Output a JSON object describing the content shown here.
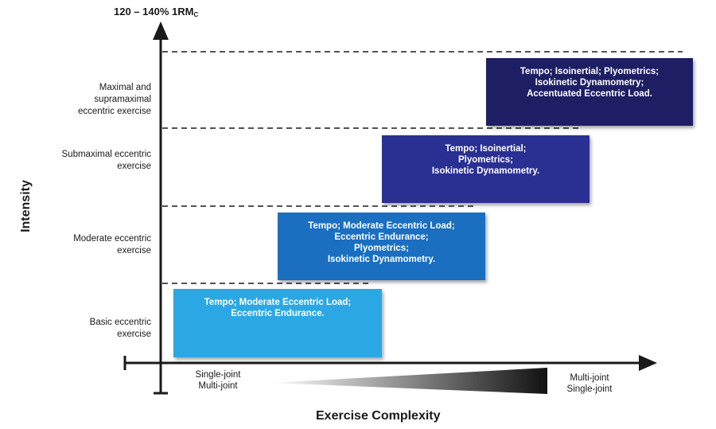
{
  "y_axis": {
    "top_label_main": "120 – 140% 1RM",
    "top_label_sub": "C",
    "title": "Intensity"
  },
  "x_axis": {
    "title": "Exercise Complexity",
    "left_note": [
      "Single-joint",
      "Multi-joint"
    ],
    "right_note": [
      "Multi-joint",
      "Single-joint"
    ]
  },
  "levels": [
    {
      "label": [
        "Maximal and",
        "supramaximal",
        "eccentric exercise"
      ],
      "box_lines": [
        "Tempo; Isoinertial; Plyometrics;",
        "Isokinetic Dynamometry;",
        "Accentuated Eccentric Load."
      ],
      "color": "#1e1e64"
    },
    {
      "label": [
        "Submaximal eccentric",
        "exercise"
      ],
      "box_lines": [
        "Tempo; Isoinertial;",
        "Plyometrics;",
        "Isokinetic Dynamometry."
      ],
      "color": "#2a2f92"
    },
    {
      "label": [
        "Moderate eccentric",
        "exercise"
      ],
      "box_lines": [
        "Tempo; Moderate Eccentric Load;",
        "Eccentric Endurance;",
        "Plyometrics;",
        "Isokinetic Dynamometry."
      ],
      "color": "#1a6fc0"
    },
    {
      "label": [
        "Basic eccentric",
        "exercise"
      ],
      "box_lines": [
        "Tempo; Moderate Eccentric Load;",
        "Eccentric Endurance."
      ],
      "color": "#2ba8e4"
    }
  ],
  "colors": {
    "axis": "#1a1a1a",
    "gradient_start": "#ffffff",
    "gradient_end": "#111111"
  }
}
